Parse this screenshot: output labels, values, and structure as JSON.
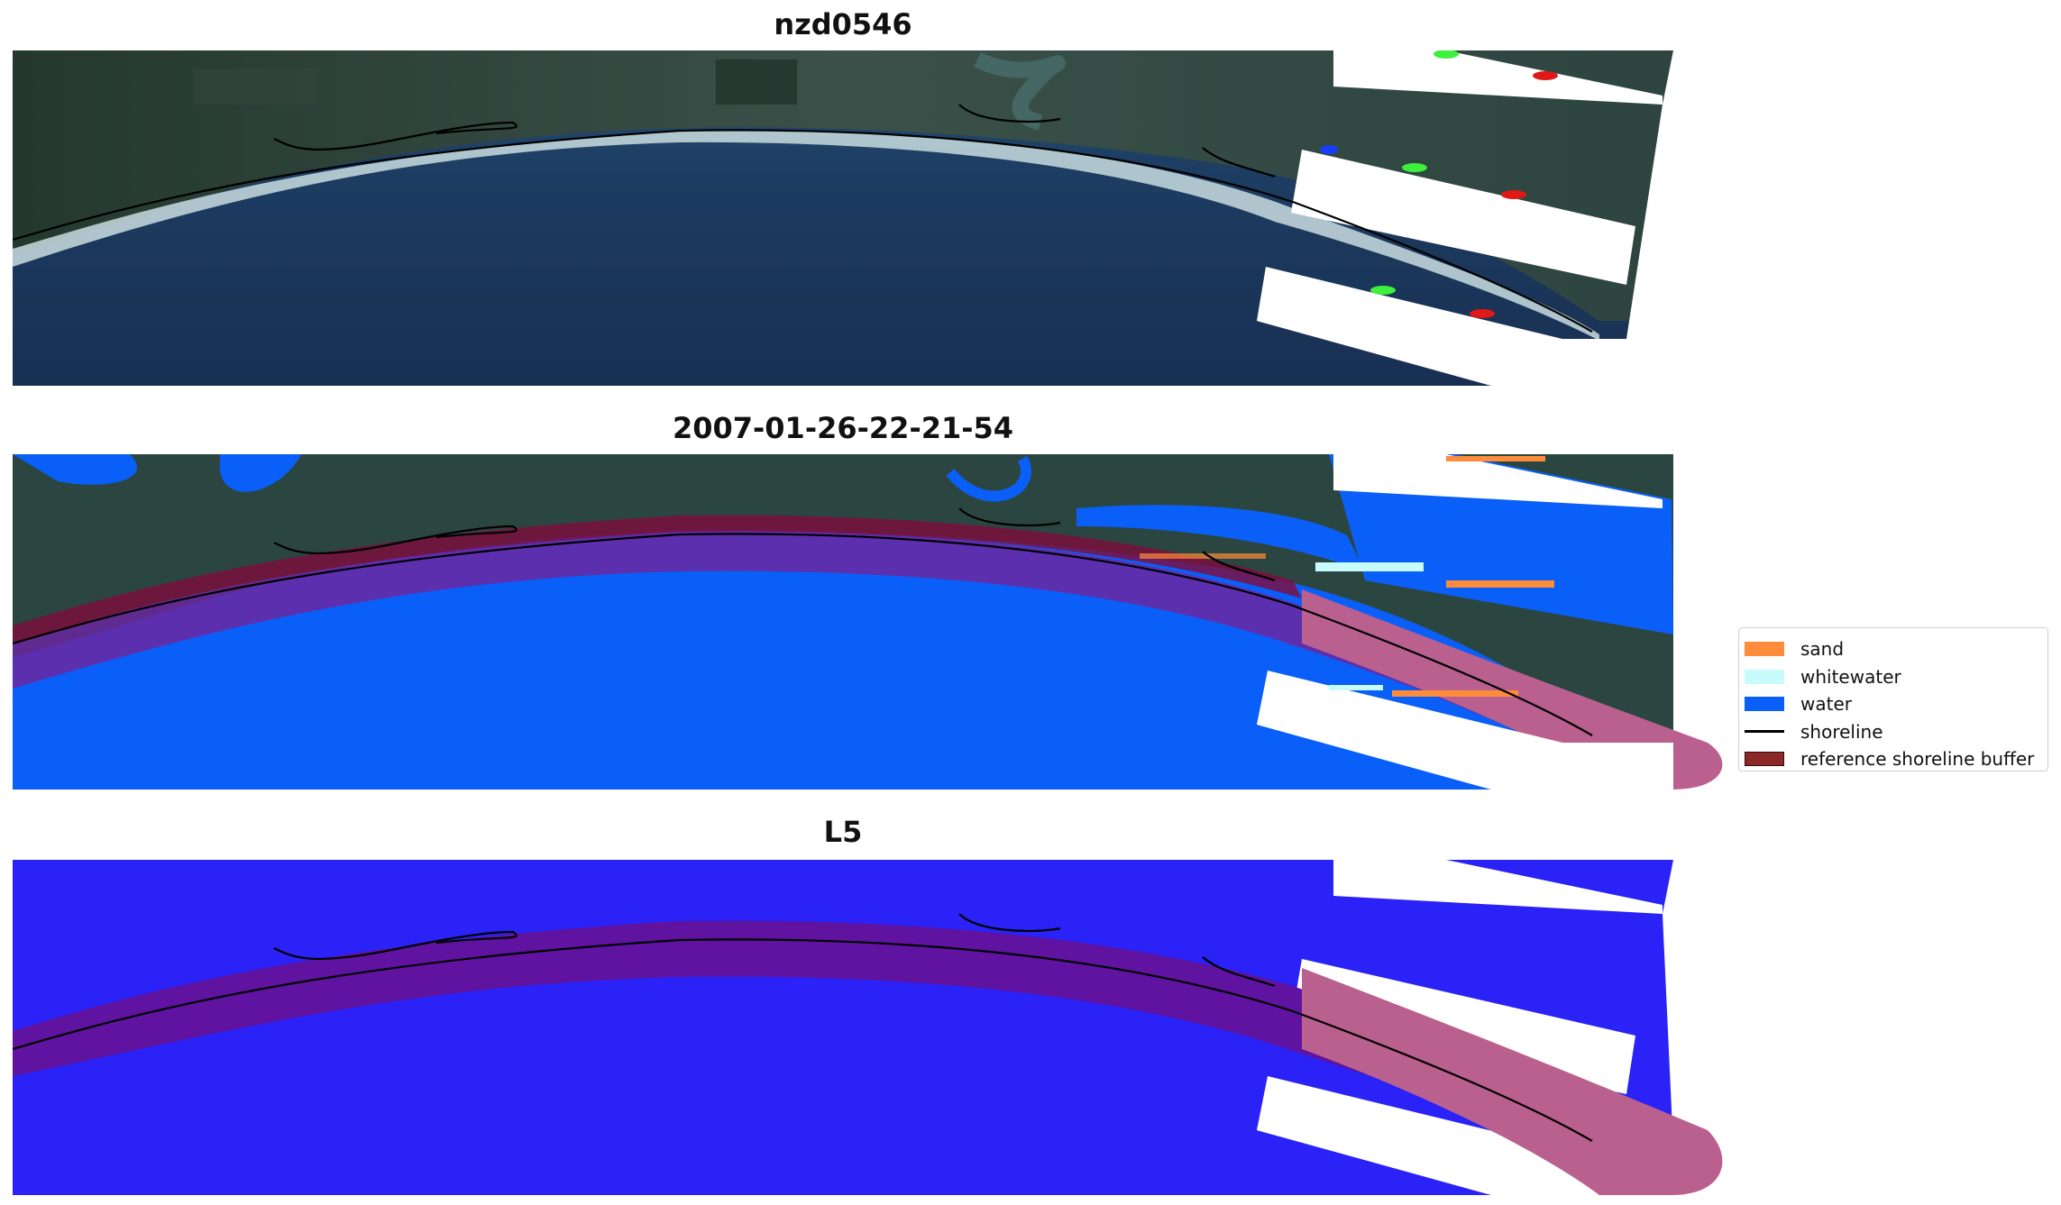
{
  "panels": [
    {
      "id": "top",
      "title": "nzd0546",
      "kind": "satellite"
    },
    {
      "id": "middle",
      "title": "2007-01-26-22-21-54",
      "kind": "classification"
    },
    {
      "id": "bottom",
      "title": "L5",
      "kind": "mask"
    }
  ],
  "legend": {
    "items": [
      {
        "label": "sand",
        "color": "#ff8c3a",
        "type": "patch"
      },
      {
        "label": "whitewater",
        "color": "#c8fcfc",
        "type": "patch"
      },
      {
        "label": "water",
        "color": "#0a5ff8",
        "type": "patch"
      },
      {
        "label": "shoreline",
        "color": "#000000",
        "type": "line"
      },
      {
        "label": "reference shoreline buffer",
        "color": "#8b2828",
        "type": "patch"
      }
    ]
  },
  "colors": {
    "deep_water": "#1d3658",
    "land": "#2e4a3e",
    "surf": "#c9dde0",
    "class_water": "#0a5ff8",
    "mask_fill": "#2a22f6",
    "buffer_overlay": "#800b3c",
    "buffer_outside": "#b9608f",
    "shoreline": "#000000"
  }
}
